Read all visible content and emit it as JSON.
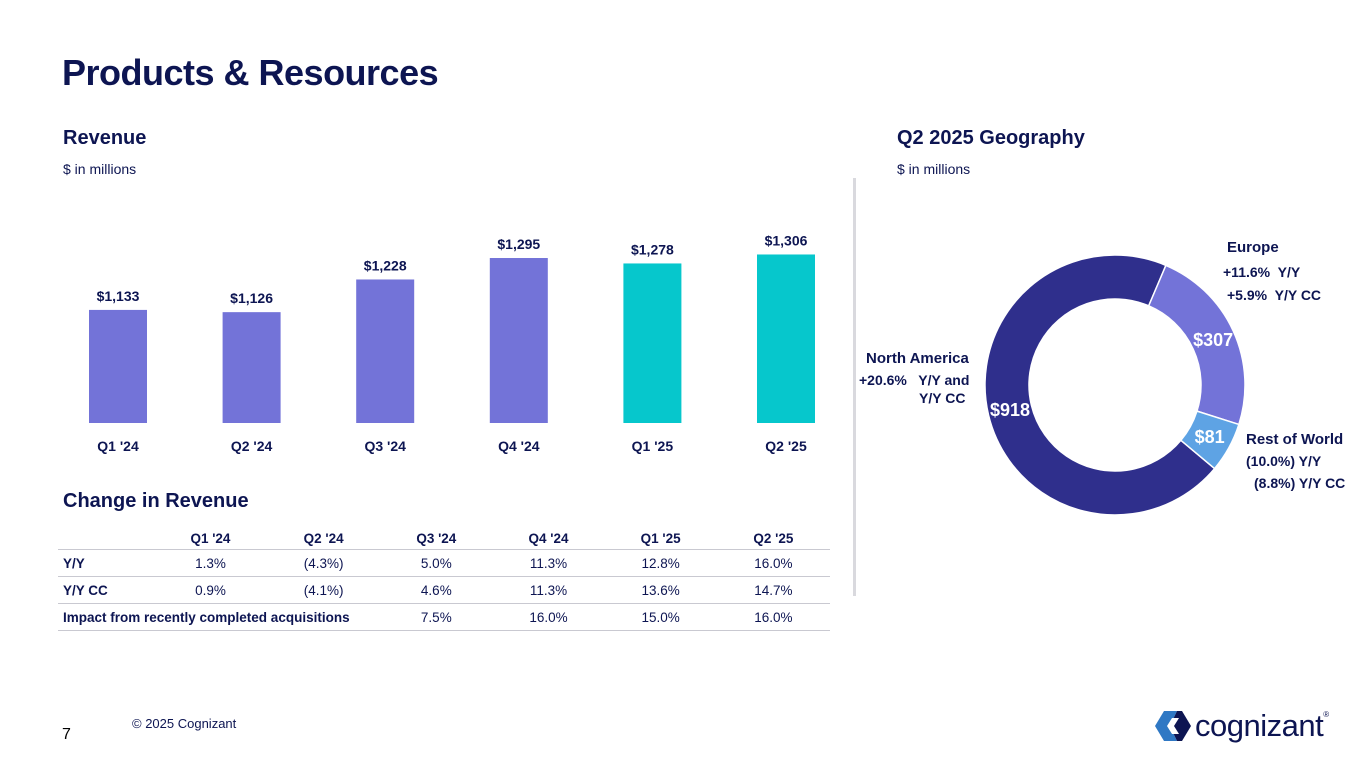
{
  "page": {
    "title": "Products & Resources",
    "page_number": "7",
    "copyright": "© 2025 Cognizant",
    "logo_text": "cognizant",
    "logo_mark": "®"
  },
  "revenue": {
    "title": "Revenue",
    "subtitle": "$ in millions"
  },
  "geography": {
    "title": "Q2 2025 Geography",
    "subtitle": "$ in millions",
    "europe": {
      "label": "Europe",
      "note1": "+11.6%  Y/Y",
      "note2": "+5.9%  Y/Y CC"
    },
    "north_america": {
      "label": "North America",
      "note1": "+20.6%   Y/Y and",
      "note2": "Y/Y CC"
    },
    "rest_of_world": {
      "label": "Rest of World",
      "note1": "(10.0%) Y/Y",
      "note2": "(8.8%) Y/Y CC"
    }
  },
  "change": {
    "title": "Change in Revenue",
    "headers": [
      "",
      "Q1 '24",
      "Q2 '24",
      "Q3 '24",
      "Q4 '24",
      "Q1 '25",
      "Q2 '25"
    ],
    "rows": [
      {
        "label": "Y/Y",
        "values": [
          "1.3%",
          "(4.3%)",
          "5.0%",
          "11.3%",
          "12.8%",
          "16.0%"
        ]
      },
      {
        "label": "Y/Y CC",
        "values": [
          "0.9%",
          "(4.1%)",
          "4.6%",
          "11.3%",
          "13.6%",
          "14.7%"
        ]
      },
      {
        "label": "Impact from recently completed acquisitions",
        "values": [
          "7.5%",
          "16.0%",
          "15.0%",
          "16.0%"
        ]
      }
    ]
  },
  "colors": {
    "navy": "#0d1552",
    "purple": "#7373d8",
    "teal": "#06c7cc",
    "donut_navy": "#2f2f8c",
    "donut_purple": "#7373d8",
    "donut_blue": "#5ea3e4"
  },
  "chart_data": [
    {
      "type": "bar",
      "title": "Revenue",
      "ylabel": "$ in millions",
      "categories": [
        "Q1 '24",
        "Q2 '24",
        "Q3 '24",
        "Q4 '24",
        "Q1 '25",
        "Q2 '25"
      ],
      "values": [
        1133,
        1126,
        1228,
        1295,
        1278,
        1306
      ],
      "labels": [
        "$1,133",
        "$1,126",
        "$1,228",
        "$1,295",
        "$1,278",
        "$1,306"
      ],
      "highlight": [
        false,
        false,
        false,
        false,
        true,
        true
      ],
      "ylim": [
        780,
        1320
      ]
    },
    {
      "type": "pie",
      "title": "Q2 2025 Geography",
      "donut": true,
      "slices": [
        {
          "name": "North America",
          "value": 918,
          "label": "$918"
        },
        {
          "name": "Europe",
          "value": 307,
          "label": "$307"
        },
        {
          "name": "Rest of World",
          "value": 81,
          "label": "$81"
        }
      ]
    }
  ]
}
